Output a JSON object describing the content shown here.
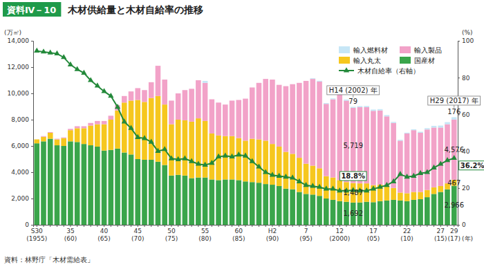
{
  "chart_data": {
    "type": "bar",
    "stacked": true,
    "figure_number": "資料Ⅳ－10",
    "title": "木材供給量と木材自給率の推移",
    "source": "資料：林野庁「木材需給表」",
    "y_label": "(万㎥)",
    "y2_label": "(%)",
    "x_label": "(年)",
    "grid": false,
    "legend": "top-right",
    "data_labels": true,
    "categories": [
      "S30\n(1955)",
      null,
      null,
      null,
      null,
      "35\n(60)",
      null,
      null,
      null,
      null,
      "40\n(65)",
      null,
      null,
      null,
      null,
      "45\n(70)",
      null,
      null,
      null,
      null,
      "50\n(75)",
      null,
      null,
      null,
      null,
      "55\n(80)",
      null,
      null,
      null,
      null,
      "60\n(85)",
      null,
      null,
      null,
      null,
      "H2\n(90)",
      null,
      null,
      null,
      null,
      "7\n(95)",
      null,
      null,
      null,
      null,
      "12\n(2000)",
      null,
      null,
      null,
      null,
      "17\n(05)",
      null,
      null,
      null,
      null,
      "22\n(10)",
      null,
      null,
      null,
      null,
      "27\n(15)",
      null,
      "29\n(17)"
    ],
    "ylim": [
      0,
      14000
    ],
    "yticks": [
      0,
      {
        "value": 2000,
        "label": "2,000"
      },
      {
        "value": 4000,
        "label": "4,000"
      },
      {
        "value": 6000,
        "label": "6,000"
      },
      {
        "value": 8000,
        "label": "8,000"
      },
      {
        "value": 10000,
        "label": "10,000"
      },
      {
        "value": 12000,
        "label": "12,000"
      },
      {
        "value": 14000,
        "label": "14,000"
      }
    ],
    "y2lim": [
      0,
      100
    ],
    "y2ticks": [
      0,
      20,
      40,
      60,
      80,
      100
    ],
    "series": [
      {
        "name": "国産材",
        "type": "bar",
        "color": "#3aa54b",
        "values": [
          6200,
          6350,
          6550,
          6050,
          6000,
          6350,
          6300,
          6150,
          6050,
          5950,
          5650,
          5700,
          5800,
          5500,
          5350,
          5000,
          4950,
          4950,
          4800,
          4550,
          3750,
          3800,
          3750,
          3550,
          3600,
          3600,
          3450,
          3400,
          3450,
          3450,
          3400,
          3300,
          3250,
          3200,
          3100,
          3050,
          2950,
          2750,
          2700,
          2500,
          2350,
          2300,
          2200,
          2000,
          1900,
          1800,
          1750,
          1692,
          1700,
          1750,
          1720,
          1800,
          1850,
          1900,
          1850,
          1800,
          1900,
          1950,
          2100,
          2350,
          2500,
          2700,
          2966
        ],
        "value_labels": [
          null,
          null,
          null,
          null,
          null,
          null,
          null,
          null,
          null,
          null,
          null,
          null,
          null,
          null,
          null,
          null,
          null,
          null,
          null,
          null,
          null,
          null,
          null,
          null,
          null,
          null,
          null,
          null,
          null,
          null,
          null,
          null,
          null,
          null,
          null,
          null,
          null,
          null,
          null,
          null,
          null,
          null,
          null,
          null,
          null,
          null,
          null,
          "1,692",
          null,
          null,
          null,
          null,
          null,
          null,
          null,
          null,
          null,
          null,
          null,
          null,
          null,
          null,
          "2,966"
        ]
      },
      {
        "name": "輸入丸太",
        "type": "bar",
        "color": "#f6c71e",
        "values": [
          300,
          350,
          450,
          450,
          600,
          850,
          1050,
          1200,
          1500,
          1700,
          2000,
          2300,
          2900,
          3800,
          4100,
          4500,
          4400,
          4700,
          5000,
          4600,
          3900,
          4200,
          4200,
          4300,
          4500,
          4300,
          3500,
          3400,
          3300,
          3300,
          3200,
          3100,
          3300,
          3300,
          3300,
          3100,
          3000,
          2800,
          2700,
          2600,
          2300,
          2200,
          2100,
          1700,
          1700,
          1600,
          1500,
          1487,
          1450,
          1400,
          1300,
          1250,
          1100,
          900,
          600,
          600,
          600,
          550,
          550,
          500,
          450,
          450,
          467
        ],
        "value_labels": [
          null,
          null,
          null,
          null,
          null,
          null,
          null,
          null,
          null,
          null,
          null,
          null,
          null,
          null,
          null,
          null,
          null,
          null,
          null,
          null,
          null,
          null,
          null,
          null,
          null,
          null,
          null,
          null,
          null,
          null,
          null,
          null,
          null,
          null,
          null,
          null,
          null,
          null,
          null,
          null,
          null,
          null,
          null,
          null,
          null,
          null,
          null,
          "1,487",
          null,
          null,
          null,
          null,
          null,
          null,
          null,
          null,
          null,
          null,
          null,
          null,
          null,
          null,
          "467"
        ]
      },
      {
        "name": "輸入製品",
        "type": "bar",
        "color": "#f2a2c8",
        "values": [
          0,
          50,
          50,
          50,
          50,
          100,
          150,
          150,
          200,
          250,
          250,
          300,
          400,
          500,
          700,
          900,
          900,
          1200,
          2300,
          1900,
          1800,
          2000,
          2300,
          2500,
          2900,
          2900,
          2600,
          2500,
          2400,
          2700,
          2900,
          3200,
          3900,
          4300,
          4700,
          4900,
          4700,
          5000,
          5300,
          5700,
          6300,
          6600,
          6600,
          5500,
          5950,
          6500,
          6200,
          5719,
          5800,
          5800,
          5650,
          5650,
          5300,
          4950,
          3950,
          4550,
          4700,
          4500,
          4600,
          4550,
          4450,
          4500,
          4576
        ],
        "value_labels": [
          null,
          null,
          null,
          null,
          null,
          null,
          null,
          null,
          null,
          null,
          null,
          null,
          null,
          null,
          null,
          null,
          null,
          null,
          null,
          null,
          null,
          null,
          null,
          null,
          null,
          null,
          null,
          null,
          null,
          null,
          null,
          null,
          null,
          null,
          null,
          null,
          null,
          null,
          null,
          null,
          null,
          null,
          null,
          null,
          null,
          null,
          null,
          "5,719",
          null,
          null,
          null,
          null,
          null,
          null,
          null,
          null,
          null,
          null,
          null,
          null,
          null,
          null,
          "4,576"
        ]
      },
      {
        "name": "輸入燃料材",
        "type": "bar",
        "color": "#c6e6f6",
        "values": [
          0,
          0,
          0,
          0,
          0,
          0,
          0,
          0,
          0,
          0,
          0,
          0,
          0,
          0,
          0,
          0,
          0,
          0,
          0,
          0,
          0,
          0,
          0,
          0,
          0,
          150,
          0,
          0,
          0,
          0,
          0,
          0,
          0,
          0,
          0,
          0,
          0,
          0,
          0,
          0,
          0,
          50,
          60,
          60,
          70,
          80,
          80,
          79,
          80,
          90,
          100,
          100,
          100,
          80,
          70,
          60,
          70,
          80,
          100,
          130,
          150,
          160,
          176
        ],
        "value_labels": [
          null,
          null,
          null,
          null,
          null,
          null,
          null,
          null,
          null,
          null,
          null,
          null,
          null,
          null,
          null,
          null,
          null,
          null,
          null,
          null,
          null,
          null,
          null,
          null,
          null,
          null,
          null,
          null,
          null,
          null,
          null,
          null,
          null,
          null,
          null,
          null,
          null,
          null,
          null,
          null,
          null,
          null,
          null,
          null,
          null,
          null,
          null,
          "79",
          null,
          null,
          null,
          null,
          null,
          null,
          null,
          null,
          null,
          null,
          null,
          null,
          null,
          null,
          "176"
        ]
      },
      {
        "name": "木材自給率（右軸）",
        "type": "line",
        "axis": "y2",
        "color": "#23893a",
        "marker": "triangle",
        "values": [
          94.5,
          94,
          93.5,
          93,
          91,
          87,
          84.5,
          82.5,
          78.5,
          75.5,
          72.5,
          70,
          64,
          56,
          52.5,
          47.5,
          47,
          45,
          40,
          41,
          36,
          35.5,
          36,
          34.5,
          33,
          32.5,
          33.5,
          37,
          37.5,
          37,
          38,
          37.5,
          34.5,
          31.5,
          28.5,
          27,
          26.5,
          26,
          25.5,
          23.5,
          21.5,
          21,
          20.5,
          19.5,
          19.5,
          18.5,
          18.5,
          18.8,
          18.5,
          18.5,
          19.5,
          20.5,
          21.5,
          23.5,
          27.5,
          26,
          26.5,
          28,
          28.5,
          31,
          33,
          35,
          36.2
        ],
        "value_labels": [
          null,
          null,
          null,
          null,
          null,
          null,
          null,
          null,
          null,
          null,
          null,
          null,
          null,
          null,
          null,
          null,
          null,
          null,
          null,
          null,
          null,
          null,
          null,
          null,
          null,
          null,
          null,
          null,
          null,
          null,
          null,
          null,
          null,
          null,
          null,
          null,
          null,
          null,
          null,
          null,
          null,
          null,
          null,
          null,
          null,
          null,
          null,
          "18.8%",
          null,
          null,
          null,
          null,
          null,
          null,
          null,
          null,
          null,
          null,
          null,
          null,
          null,
          null,
          "36.2%"
        ]
      }
    ],
    "annotations": [
      {
        "text": "H14 (2002) 年",
        "x": 47
      },
      {
        "text": "H29 (2017) 年",
        "x": 62
      }
    ]
  }
}
